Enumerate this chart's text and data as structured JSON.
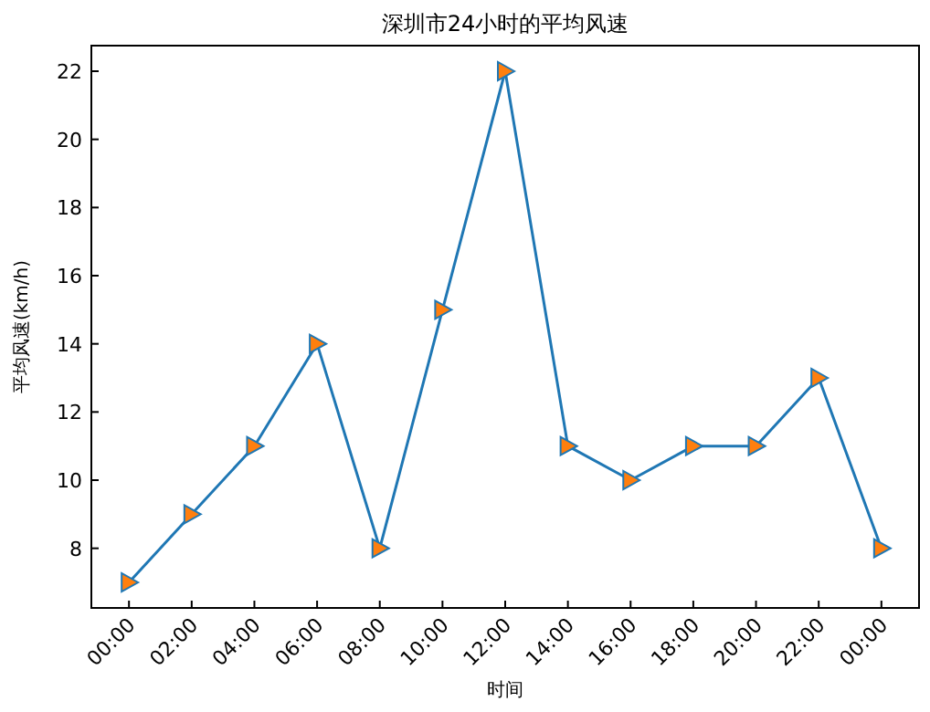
{
  "chart_data": {
    "type": "line",
    "title": "深圳市24小时的平均风速",
    "xlabel": "时间",
    "ylabel": "平均风速(km/h)",
    "categories": [
      "00:00",
      "02:00",
      "04:00",
      "06:00",
      "08:00",
      "10:00",
      "12:00",
      "14:00",
      "16:00",
      "18:00",
      "20:00",
      "22:00",
      "00:00"
    ],
    "series": [
      {
        "color": "#1f77b4",
        "colors": [
          "#ff7f0e",
          "#ff7f0e",
          "#ff7f0e",
          "#ff7f0e",
          "#ff7f0e",
          "#ff7f0e",
          "#ff7f0e",
          "#ff7f0e",
          "#ff7f0e",
          "#ff7f0e",
          "#ff7f0e",
          "#ff7f0e",
          "#ff7f0e"
        ],
        "values": [
          7,
          9,
          11,
          14,
          8,
          15,
          22,
          11,
          10,
          11,
          11,
          13,
          8
        ]
      }
    ],
    "ylim": [
      6.25,
      22.75
    ],
    "yticks": [
      8,
      10,
      12,
      14,
      16,
      18,
      20,
      22
    ],
    "marker": "triangle",
    "line_style": "solid",
    "grid": false
  }
}
